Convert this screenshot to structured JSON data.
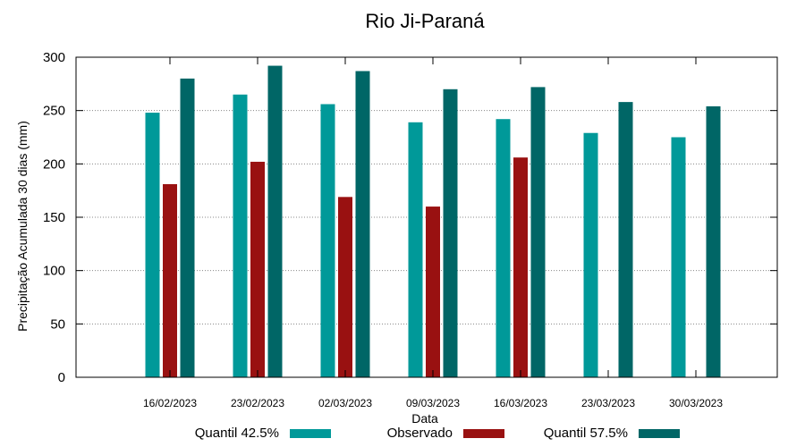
{
  "chart_data": {
    "type": "bar",
    "title": "Rio Ji-Paraná",
    "xlabel": "Data",
    "ylabel": "Precipitação Acumulada 30 dias (mm)",
    "ylim": [
      0,
      300
    ],
    "yticks": [
      0,
      50,
      100,
      150,
      200,
      250,
      300
    ],
    "grid": true,
    "legend_position": "bottom",
    "categories": [
      "16/02/2023",
      "23/02/2023",
      "02/03/2023",
      "09/03/2023",
      "16/03/2023",
      "23/03/2023",
      "30/03/2023"
    ],
    "series": [
      {
        "name": "Quantil 42.5%",
        "color": "#009999",
        "values": [
          248,
          265,
          256,
          239,
          242,
          229,
          225
        ]
      },
      {
        "name": "Observado",
        "color": "#991111",
        "values": [
          181,
          202,
          169,
          160,
          206,
          null,
          null
        ]
      },
      {
        "name": "Quantil 57.5%",
        "color": "#006666",
        "values": [
          280,
          292,
          287,
          270,
          272,
          258,
          254
        ]
      }
    ]
  }
}
